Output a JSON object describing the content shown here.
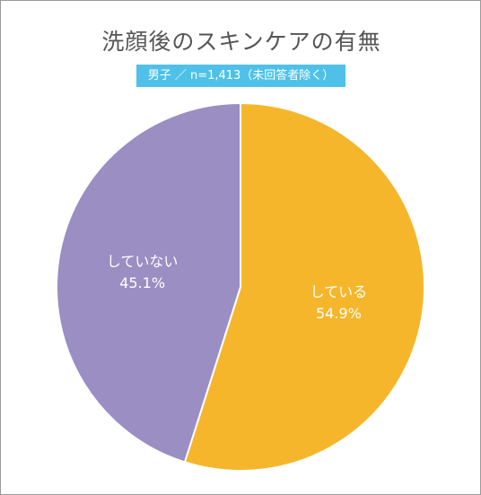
{
  "header": {
    "title": "洗顔後のスキンケアの有無",
    "subtitle": "男子 ／ n=1,413（未回答者除く）"
  },
  "chart_data": {
    "type": "pie",
    "title": "洗顔後のスキンケアの有無",
    "subtitle": "男子 ／ n=1,413（未回答者除く）",
    "slices": [
      {
        "label": "している",
        "value": 54.9,
        "value_label": "54.9%",
        "color": "#f6b62b"
      },
      {
        "label": "していない",
        "value": 45.1,
        "value_label": "45.1%",
        "color": "#9a8ec3"
      }
    ],
    "start": "top",
    "direction": "clockwise",
    "legend": "none"
  }
}
